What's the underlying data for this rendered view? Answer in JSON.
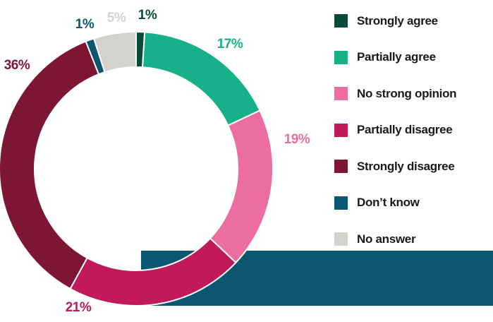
{
  "chart_data": {
    "type": "pie",
    "style": "donut",
    "categories": [
      "Strongly agree",
      "Partially agree",
      "No strong opinion",
      "Partially disagree",
      "Strongly disagree",
      "Don’t know",
      "No answer"
    ],
    "values": [
      1,
      17,
      19,
      21,
      36,
      1,
      5
    ],
    "labels": [
      "1%",
      "17%",
      "19%",
      "21%",
      "36%",
      "1%",
      "5%"
    ],
    "colors": [
      "#0b4a3a",
      "#16b08a",
      "#ec6d9f",
      "#c11a5b",
      "#7d1535",
      "#0b5670",
      "#d3d2cd"
    ],
    "legend_position": "right",
    "background_band_color": "#0b5670"
  }
}
